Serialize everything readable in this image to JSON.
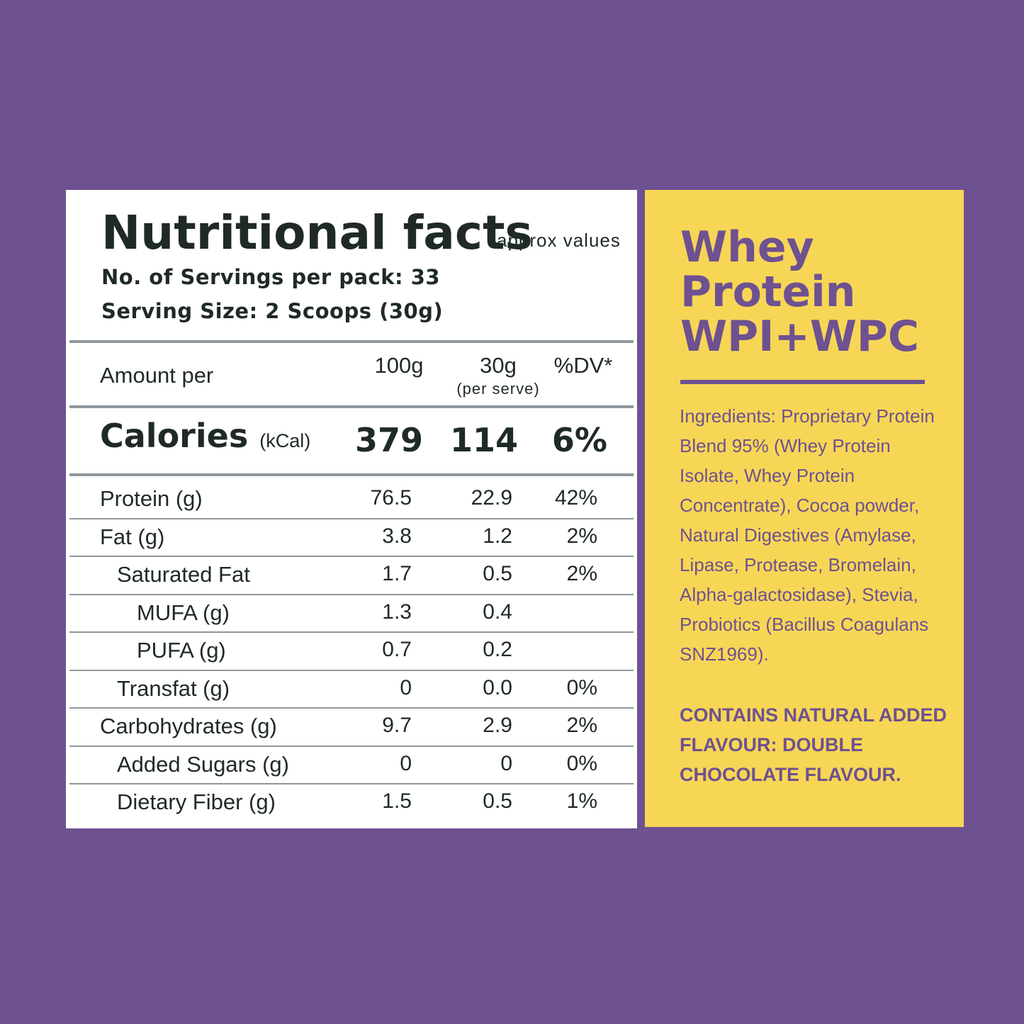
{
  "facts": {
    "title": "Nutritional facts",
    "approx": "approx values",
    "servings": "No. of Servings per pack: 33",
    "serving_size": "Serving Size: 2 Scoops (30g)",
    "header": {
      "label": "Amount per",
      "col1": "100g",
      "col2": "30g",
      "col2_sub": "(per serve)",
      "col3": "%DV*"
    },
    "calories": {
      "label": "Calories",
      "unit": "(kCal)",
      "v100": "379",
      "v30": "114",
      "dv": "6%"
    },
    "rows": [
      {
        "label": "Protein (g)",
        "v100": "76.5",
        "v30": "22.9",
        "dv": "42%"
      },
      {
        "label": "Fat (g)",
        "v100": "3.8",
        "v30": "1.2",
        "dv": "2%"
      },
      {
        "label": "Saturated Fat",
        "v100": "1.7",
        "v30": "0.5",
        "dv": "2%"
      },
      {
        "label": "MUFA (g)",
        "v100": "1.3",
        "v30": "0.4",
        "dv": ""
      },
      {
        "label": "PUFA (g)",
        "v100": "0.7",
        "v30": "0.2",
        "dv": ""
      },
      {
        "label": "Transfat (g)",
        "v100": "0",
        "v30": "0.0",
        "dv": "0%"
      },
      {
        "label": "Carbohydrates (g)",
        "v100": "9.7",
        "v30": "2.9",
        "dv": "2%"
      },
      {
        "label": "Added Sugars (g)",
        "v100": "0",
        "v30": "0",
        "dv": "0%"
      },
      {
        "label": "Dietary Fiber (g)",
        "v100": "1.5",
        "v30": "0.5",
        "dv": "1%"
      }
    ]
  },
  "product": {
    "title_line1": "Whey",
    "title_line2": "Protein",
    "title_line3": "WPI+WPC",
    "ingredients": "Ingredients: Proprietary Protein Blend 95% (Whey Protein Isolate, Whey Protein Concentrate), Cocoa powder, Natural Digestives (Amylase, Lipase, Protease, Bromelain, Alpha-galactosidase), Stevia, Probiotics (Bacillus Coagulans SNZ1969).",
    "flavour": "CONTAINS NATURAL ADDED FLAVOUR: DOUBLE CHOCOLATE FLAVOUR."
  },
  "colors": {
    "background": "#6e5190",
    "accent": "#f7d656",
    "text_dark": "#1f2a27"
  }
}
